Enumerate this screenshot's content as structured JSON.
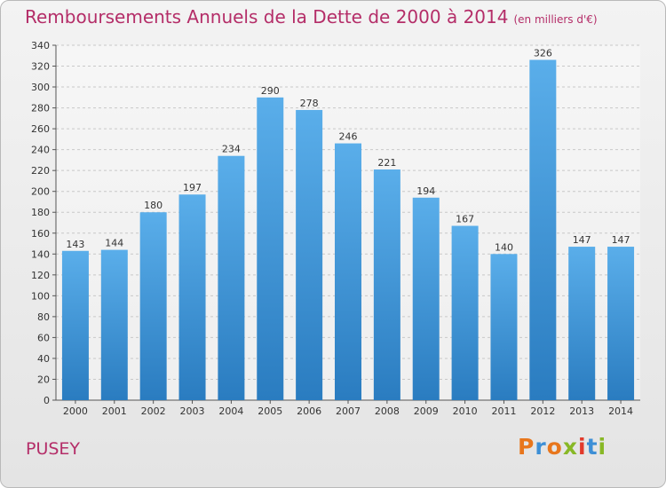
{
  "title": "Remboursements Annuels de la Dette de 2000 à 2014",
  "subtitle": "(en milliers d'€)",
  "city": "PUSEY",
  "logo": {
    "text": "Proxiti",
    "colors": [
      "#e8761c",
      "#3d8fd6",
      "#e8761c",
      "#88b826",
      "#e23a2b",
      "#3d8fd6",
      "#88b826"
    ]
  },
  "colors": {
    "accent": "#b42d68",
    "bar_top": "#5aaeea",
    "bar_bottom": "#2a7cc0"
  },
  "chart_data": {
    "type": "bar",
    "title": "Remboursements Annuels de la Dette de 2000 à 2014",
    "xlabel": "",
    "ylabel": "",
    "categories": [
      "2000",
      "2001",
      "2002",
      "2003",
      "2004",
      "2005",
      "2006",
      "2007",
      "2008",
      "2009",
      "2010",
      "2011",
      "2012",
      "2013",
      "2014"
    ],
    "values": [
      143,
      144,
      180,
      197,
      234,
      290,
      278,
      246,
      221,
      194,
      167,
      140,
      326,
      147,
      147
    ],
    "ylim": [
      0,
      340
    ],
    "yticks": [
      0,
      20,
      40,
      60,
      80,
      100,
      120,
      140,
      160,
      180,
      200,
      220,
      240,
      260,
      280,
      300,
      320,
      340
    ],
    "grid": true
  }
}
